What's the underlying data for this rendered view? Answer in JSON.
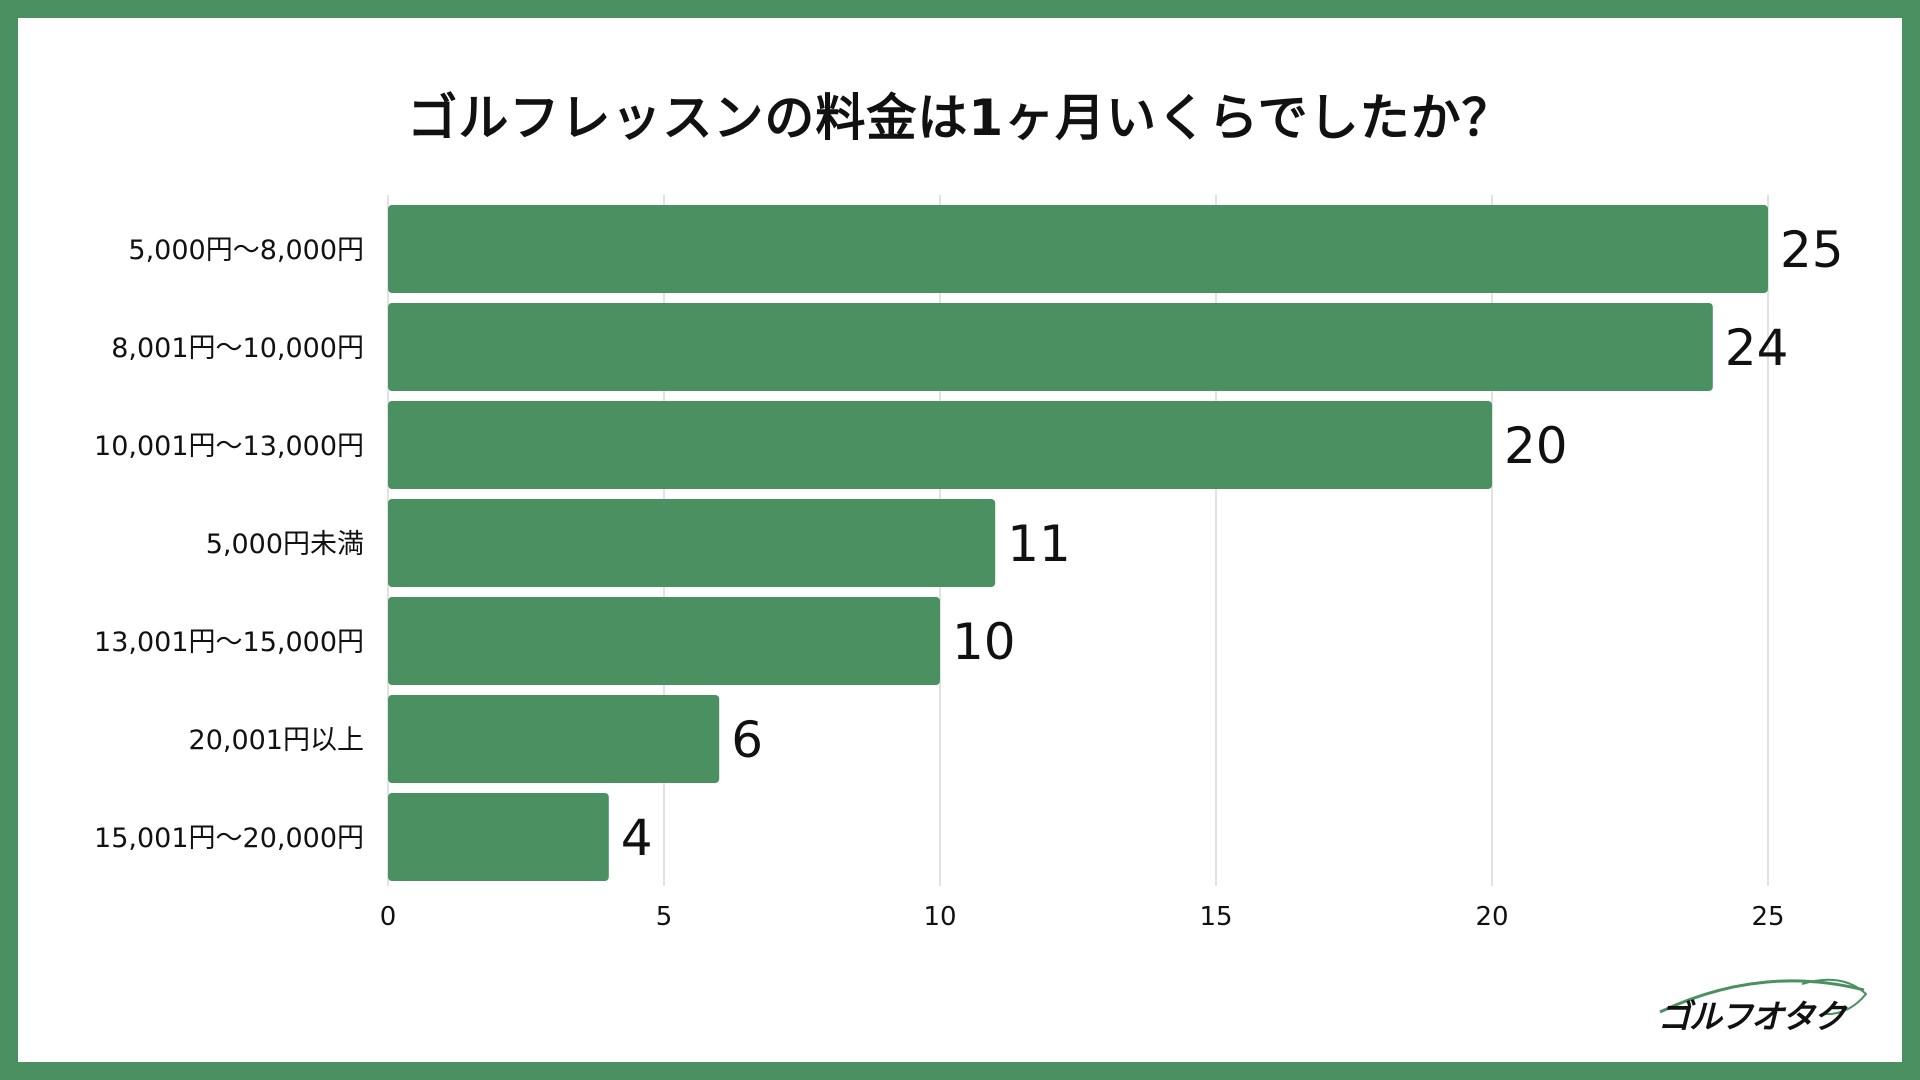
{
  "chart_data": {
    "type": "bar",
    "orientation": "horizontal",
    "title": "ゴルフレッスンの料金は1ヶ月いくらでしたか？",
    "categories": [
      "5,000円〜8,000円",
      "8,001円〜10,000円",
      "10,001円〜13,000円",
      "5,000円未満",
      "13,001円〜15,000円",
      "20,001円以上",
      "15,001円〜20,000円"
    ],
    "values": [
      25,
      24,
      20,
      11,
      10,
      6,
      4
    ],
    "xlim": [
      0,
      25
    ],
    "xticks": [
      "0",
      "5",
      "10",
      "15",
      "20",
      "25"
    ],
    "grid": true,
    "legend": "none",
    "bar_color": "#4a9060"
  },
  "logo": {
    "text": "ゴルフオタク"
  },
  "colors": {
    "frame": "#4a9060",
    "bar": "#4a9060",
    "grid": "#d9d9d9"
  }
}
